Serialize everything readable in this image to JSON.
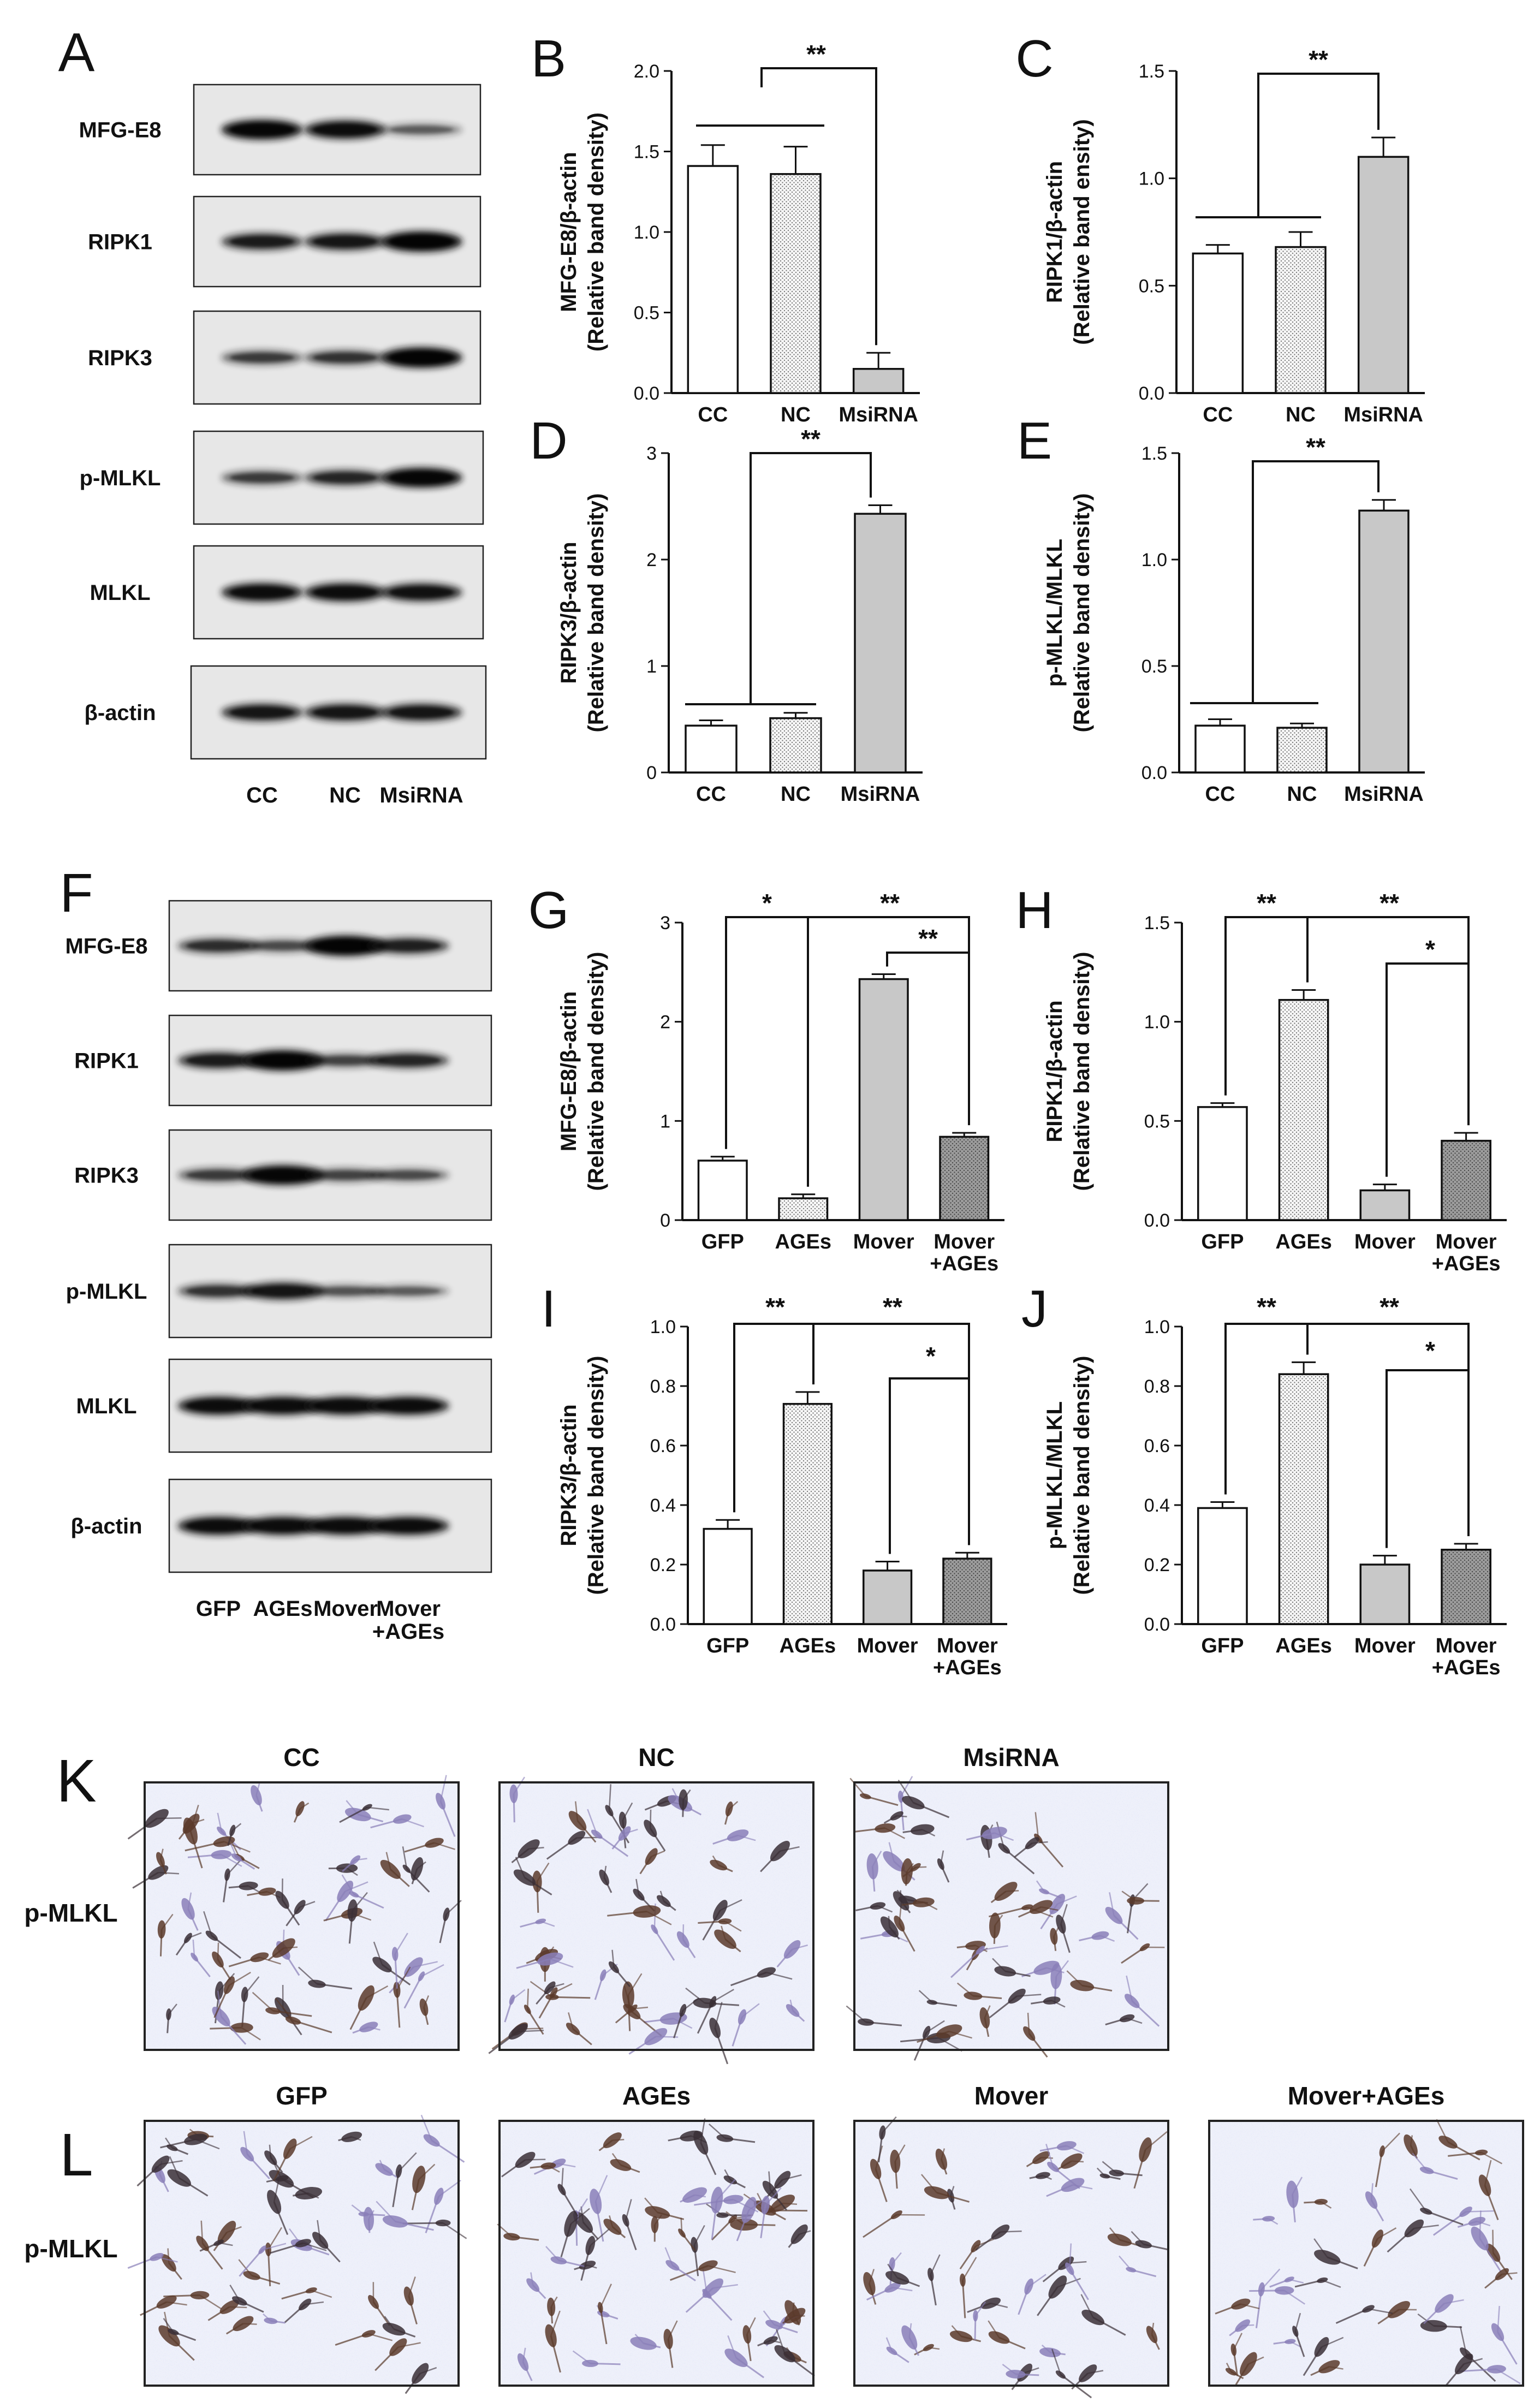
{
  "figure": {
    "block1": {
      "westernA": {
        "letter": "A",
        "proteins": [
          "MFG-E8",
          "RIPK1",
          "RIPK3",
          "p-MLKL",
          "MLKL",
          "β-actin"
        ],
        "lanes": [
          "CC",
          "NC",
          "MsiRNA"
        ]
      },
      "westernF": {
        "letter": "F",
        "proteins": [
          "MFG-E8",
          "RIPK1",
          "RIPK3",
          "p-MLKL",
          "MLKL",
          "β-actin"
        ],
        "lanes": [
          "GFP",
          "AGEs",
          "Mover",
          "Mover\n+AGEs"
        ]
      }
    },
    "microscopy": {
      "K": {
        "letter": "K",
        "rowLabel": "p-MLKL",
        "titles": [
          "CC",
          "NC",
          "MsiRNA"
        ]
      },
      "L": {
        "letter": "L",
        "rowLabel": "p-MLKL",
        "titles": [
          "GFP",
          "AGEs",
          "Mover",
          "Mover+AGEs"
        ]
      }
    }
  },
  "chart_data": [
    {
      "letter": "B",
      "type": "bar",
      "ylabel_top": "MFG-E8/β-actin",
      "ylabel_bottom": "(Relative band density)",
      "categories": [
        "CC",
        "NC",
        "MsiRNA"
      ],
      "values": [
        1.41,
        1.36,
        0.15
      ],
      "errors": [
        0.13,
        0.17,
        0.1
      ],
      "ylim": [
        0,
        2.0
      ],
      "ticks": [
        "0.0",
        "0.5",
        "1.0",
        "1.5",
        "2.0"
      ],
      "bracket_labels": [
        "**"
      ]
    },
    {
      "letter": "C",
      "type": "bar",
      "ylabel_top": "RIPK1/β-actin",
      "ylabel_bottom": "(Relative band ensity)",
      "categories": [
        "CC",
        "NC",
        "MsiRNA"
      ],
      "values": [
        0.65,
        0.68,
        1.1
      ],
      "errors": [
        0.04,
        0.07,
        0.09
      ],
      "ylim": [
        0,
        1.5
      ],
      "ticks": [
        "0.0",
        "0.5",
        "1.0",
        "1.5"
      ],
      "bracket_labels": [
        "**"
      ]
    },
    {
      "letter": "D",
      "type": "bar",
      "ylabel_top": "RIPK3/β-actin",
      "ylabel_bottom": "(Relative band density)",
      "categories": [
        "CC",
        "NC",
        "MsiRNA"
      ],
      "values": [
        0.44,
        0.51,
        2.43
      ],
      "errors": [
        0.05,
        0.05,
        0.08
      ],
      "ylim": [
        0,
        3
      ],
      "ticks": [
        "0",
        "1",
        "2",
        "3"
      ],
      "bracket_labels": [
        "**"
      ]
    },
    {
      "letter": "E",
      "type": "bar",
      "ylabel_top": "p-MLKL/MLKL",
      "ylabel_bottom": "(Relative band density)",
      "categories": [
        "CC",
        "NC",
        "MsiRNA"
      ],
      "values": [
        0.22,
        0.21,
        1.23
      ],
      "errors": [
        0.03,
        0.02,
        0.05
      ],
      "ylim": [
        0,
        1.5
      ],
      "ticks": [
        "0.0",
        "0.5",
        "1.0",
        "1.5"
      ],
      "bracket_labels": [
        "**"
      ]
    },
    {
      "letter": "G",
      "type": "bar",
      "ylabel_top": "MFG-E8/β-actin",
      "ylabel_bottom": "(Relative band density)",
      "categories": [
        "GFP",
        "AGEs",
        "Mover",
        "Mover\n+AGEs"
      ],
      "values": [
        0.6,
        0.22,
        2.43,
        0.84
      ],
      "errors": [
        0.04,
        0.04,
        0.05,
        0.04
      ],
      "ylim": [
        0,
        3
      ],
      "ticks": [
        "0",
        "1",
        "2",
        "3"
      ],
      "bracket_labels": [
        "*",
        "**",
        "**"
      ]
    },
    {
      "letter": "H",
      "type": "bar",
      "ylabel_top": "RIPK1/β-actin",
      "ylabel_bottom": "(Relative band density)",
      "categories": [
        "GFP",
        "AGEs",
        "Mover",
        "Mover\n+AGEs"
      ],
      "values": [
        0.57,
        1.11,
        0.15,
        0.4
      ],
      "errors": [
        0.02,
        0.05,
        0.03,
        0.04
      ],
      "ylim": [
        0,
        1.5
      ],
      "ticks": [
        "0.0",
        "0.5",
        "1.0",
        "1.5"
      ],
      "bracket_labels": [
        "**",
        "**",
        "*"
      ]
    },
    {
      "letter": "I",
      "type": "bar",
      "ylabel_top": "RIPK3/β-actin",
      "ylabel_bottom": "(Relative band density)",
      "categories": [
        "GFP",
        "AGEs",
        "Mover",
        "Mover\n+AGEs"
      ],
      "values": [
        0.32,
        0.74,
        0.18,
        0.22
      ],
      "errors": [
        0.03,
        0.04,
        0.03,
        0.02
      ],
      "ylim": [
        0,
        1.0
      ],
      "ticks": [
        "0.0",
        "0.2",
        "0.4",
        "0.6",
        "0.8",
        "1.0"
      ],
      "bracket_labels": [
        "**",
        "**",
        "*"
      ]
    },
    {
      "letter": "J",
      "type": "bar",
      "ylabel_top": "p-MLKL/MLKL",
      "ylabel_bottom": "(Relative band density)",
      "categories": [
        "GFP",
        "AGEs",
        "Mover",
        "Mover\n+AGEs"
      ],
      "values": [
        0.39,
        0.84,
        0.2,
        0.25
      ],
      "errors": [
        0.02,
        0.04,
        0.03,
        0.02
      ],
      "ylim": [
        0,
        1.0
      ],
      "ticks": [
        "0.0",
        "0.2",
        "0.4",
        "0.6",
        "0.8",
        "1.0"
      ],
      "bracket_labels": [
        "**",
        "**",
        "*"
      ]
    }
  ]
}
